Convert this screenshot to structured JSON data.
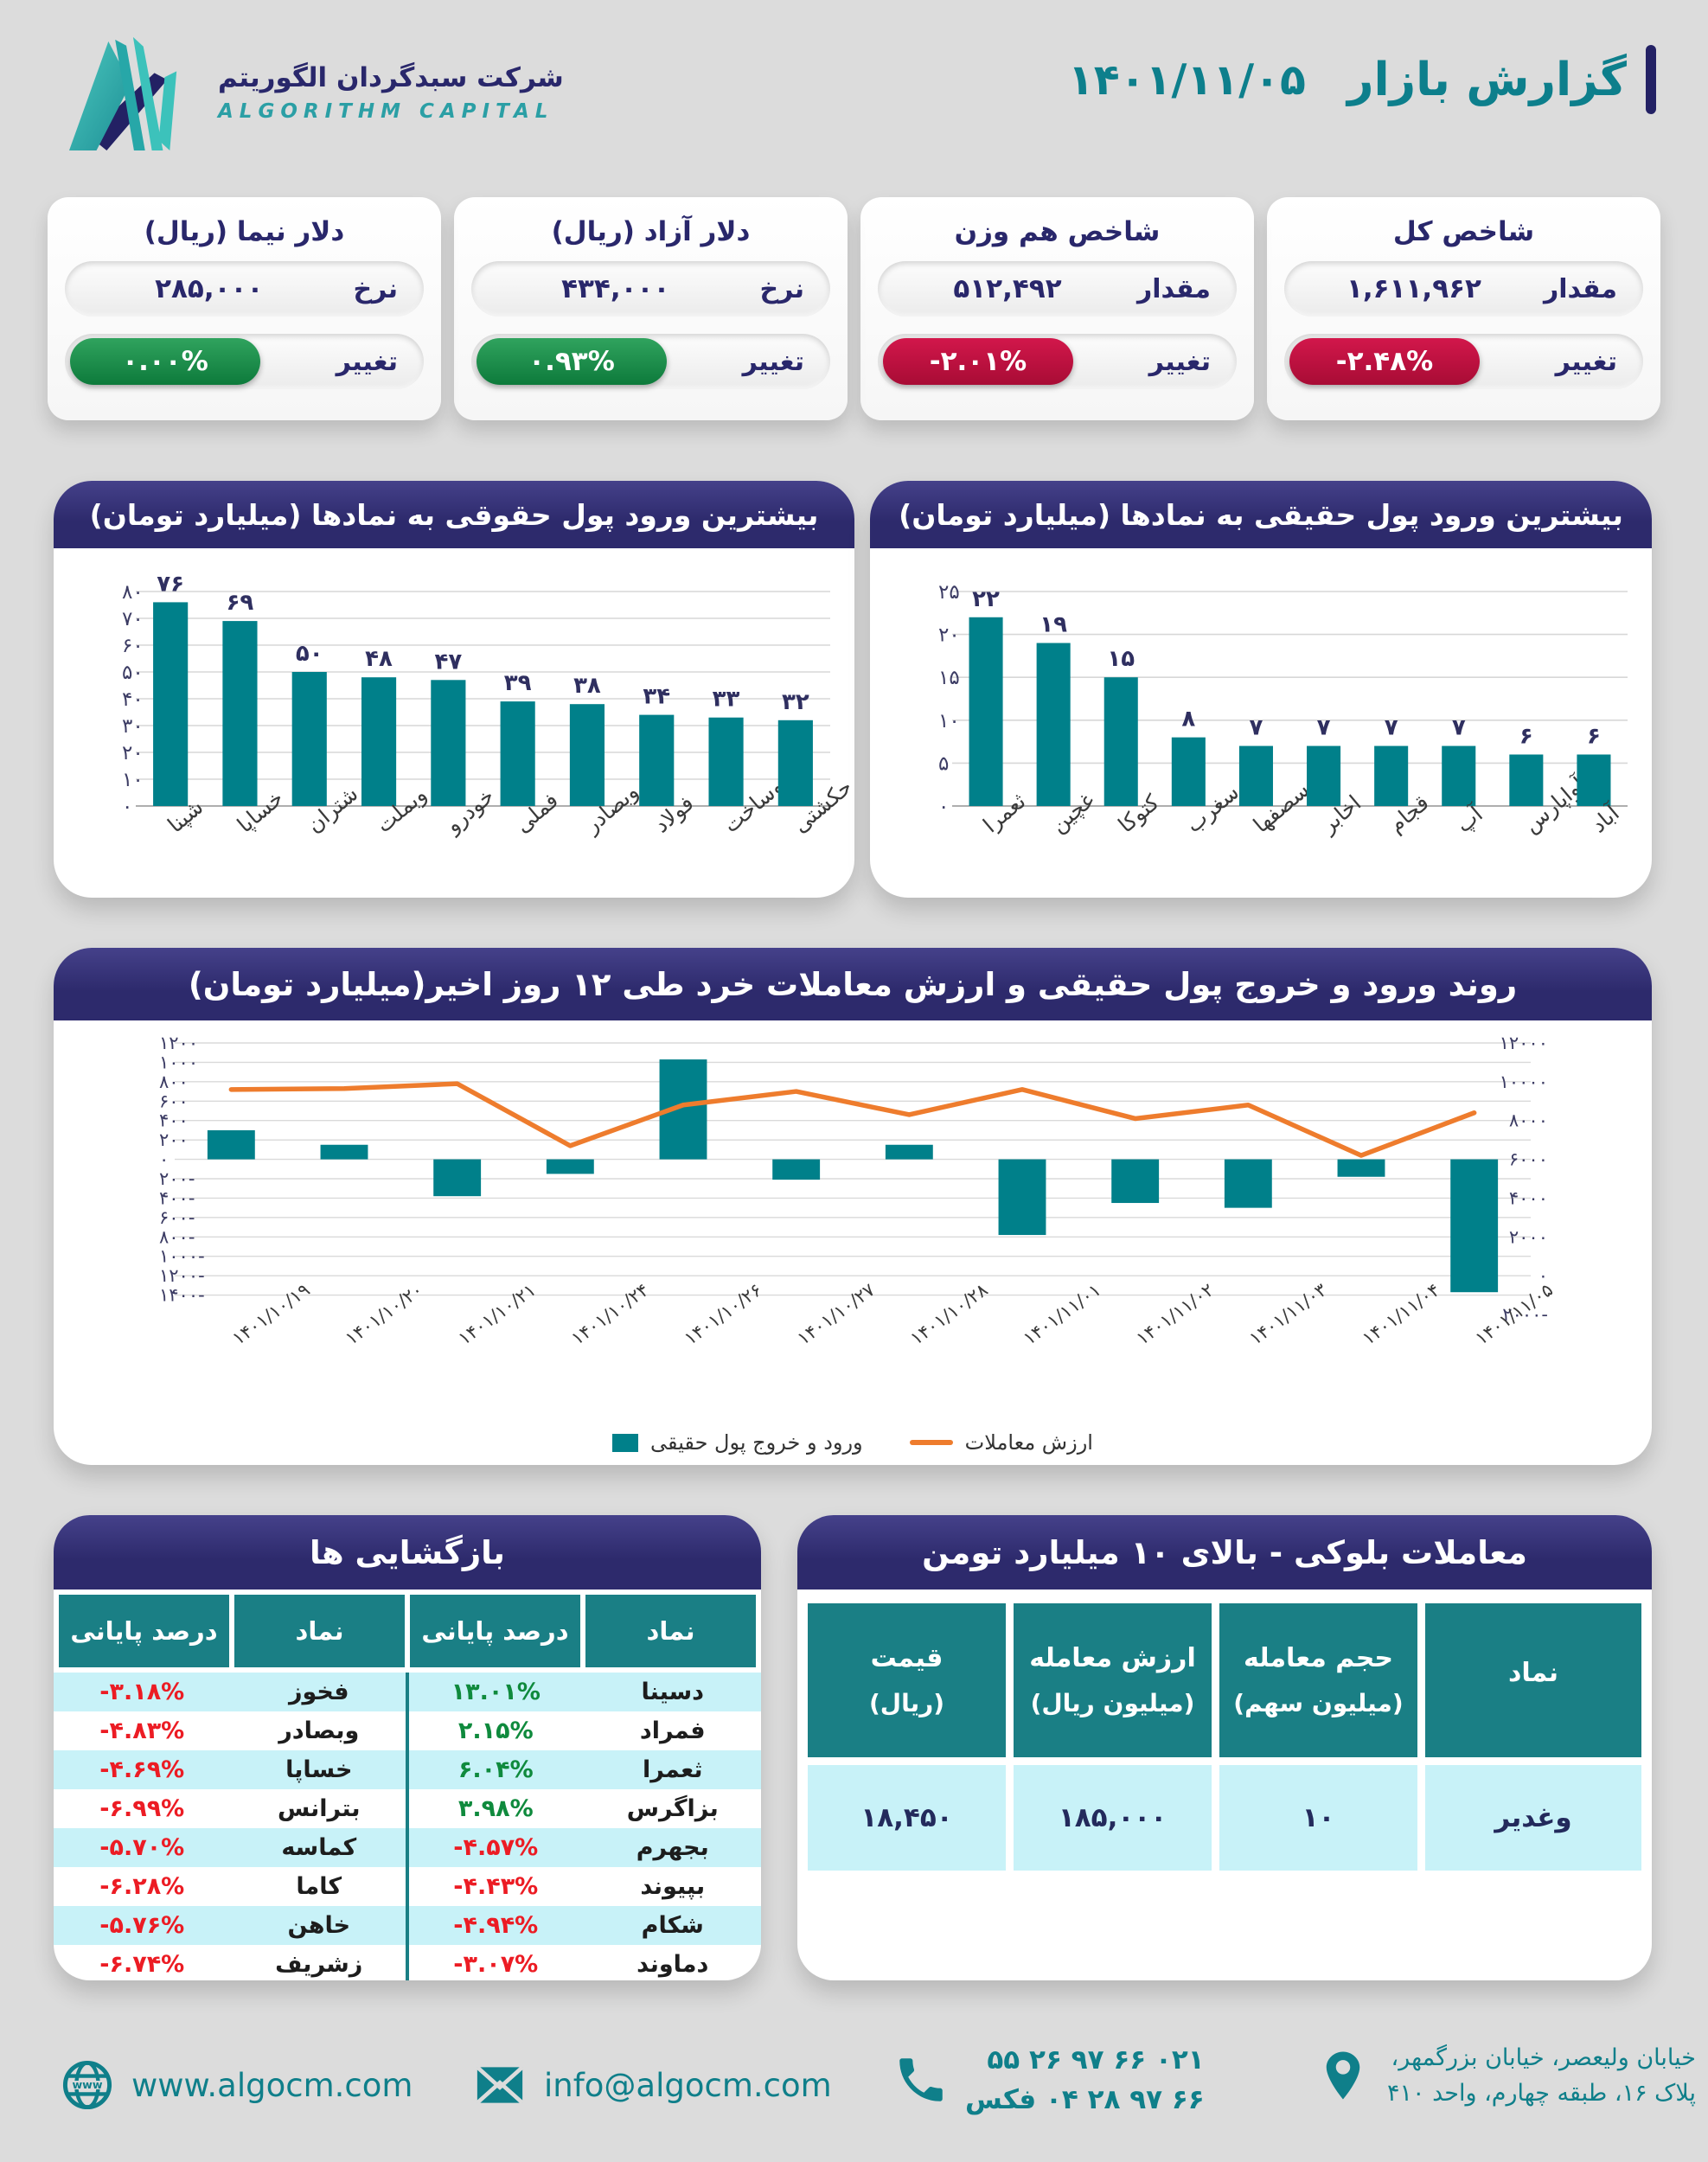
{
  "header": {
    "title": "گزارش بازار",
    "date": "۱۴۰۱/۱۱/۰۵",
    "logo_fa": "شرکت سبدگردان الگوریتم",
    "logo_en": "ALGORITHM CAPITAL"
  },
  "colors": {
    "background": "#dcdcdc",
    "navy": "#2d2a6c",
    "teal": "#00808a",
    "teal_header": "#1a7f85",
    "orange": "#ee7c2d",
    "red": "#c31244",
    "green": "#168c46",
    "row_cyan": "#c8f2f8",
    "title_teal": "#0d7f8c"
  },
  "stat_cards": [
    {
      "title": "شاخص کل",
      "row1_label": "مقدار",
      "row1_value": "۱,۶۱۱,۹۶۲",
      "row2_label": "تغییر",
      "change": "-۲.۴۸%",
      "change_type": "negative"
    },
    {
      "title": "شاخص هم وزن",
      "row1_label": "مقدار",
      "row1_value": "۵۱۲,۴۹۲",
      "row2_label": "تغییر",
      "change": "-۲.۰۱%",
      "change_type": "negative"
    },
    {
      "title": "دلار آزاد (ریال)",
      "row1_label": "نرخ",
      "row1_value": "۴۳۴,۰۰۰",
      "row2_label": "تغییر",
      "change": "۰.۹۳%",
      "change_type": "positive"
    },
    {
      "title": "دلار نیما (ریال)",
      "row1_label": "نرخ",
      "row1_value": "۲۸۵,۰۰۰",
      "row2_label": "تغییر",
      "change": "۰.۰۰%",
      "change_type": "positive"
    }
  ],
  "chart_data": [
    {
      "type": "bar",
      "title": "بیشترین ورود پول حقوقی به نمادها (میلیارد تومان)",
      "categories": [
        "شپنا",
        "خساپا",
        "شتران",
        "وبملت",
        "خودرو",
        "فملی",
        "وبصادر",
        "فولاد",
        "وساخت",
        "حکشتی"
      ],
      "values": [
        76,
        69,
        50,
        48,
        47,
        39,
        38,
        34,
        33,
        32
      ],
      "ylim": [
        0,
        80
      ],
      "ytick_step": 10,
      "bar_color": "#00808a",
      "grid": true,
      "legend_position": "none"
    },
    {
      "type": "bar",
      "title": "بیشترین ورود پول حقیقی به نمادها (میلیارد تومان)",
      "categories": [
        "ثعمرا",
        "غچین",
        "کتوکا",
        "سغرب",
        "سصفها",
        "اخابر",
        "قجام",
        "آپ",
        "آواپارس",
        "آباد"
      ],
      "values": [
        22,
        19,
        15,
        8,
        7,
        7,
        7,
        7,
        6,
        6
      ],
      "ylim": [
        0,
        25
      ],
      "ytick_step": 5,
      "bar_color": "#00808a",
      "grid": true,
      "legend_position": "none"
    },
    {
      "type": "combo",
      "title": "روند ورود و خروج پول حقیقی و ارزش معاملات خرد طی ۱۲ روز اخیر(میلیارد تومان)",
      "categories": [
        "۱۴۰۱/۱۰/۱۹",
        "۱۴۰۱/۱۰/۲۰",
        "۱۴۰۱/۱۰/۲۱",
        "۱۴۰۱/۱۰/۲۴",
        "۱۴۰۱/۱۰/۲۶",
        "۱۴۰۱/۱۰/۲۷",
        "۱۴۰۱/۱۰/۲۸",
        "۱۴۰۱/۱۱/۰۱",
        "۱۴۰۱/۱۱/۰۲",
        "۱۴۰۱/۱۱/۰۳",
        "۱۴۰۱/۱۱/۰۴",
        "۱۴۰۱/۱۱/۰۵"
      ],
      "series": [
        {
          "name": "ورود و خروج پول حقیقی",
          "type": "bar",
          "axis": "left",
          "color": "#00808a",
          "values": [
            300,
            150,
            -380,
            -150,
            1030,
            -210,
            150,
            -780,
            -450,
            -500,
            -180,
            -1370
          ]
        },
        {
          "name": "ارزش معاملات",
          "type": "line",
          "axis": "right",
          "color": "#ee7c2d",
          "values": [
            9600,
            9650,
            9900,
            6700,
            8800,
            9500,
            8300,
            9600,
            8100,
            8800,
            6200,
            8400
          ]
        }
      ],
      "left_ylim": [
        -1400,
        1200
      ],
      "left_tick_step": 200,
      "right_ylim": [
        -2000,
        12000
      ],
      "right_tick_step": 2000,
      "grid": true,
      "legend_position": "bottom"
    }
  ],
  "tables": {
    "reopenings": {
      "title": "بازگشایی ها",
      "col_headers": [
        "نماد",
        "درصد پایانی",
        "نماد",
        "درصد پایانی"
      ],
      "rows": [
        {
          "sym_r": "دسینا",
          "pct_r": "۱۳.۰۱%",
          "trend_r": "pos",
          "sym_l": "فخوز",
          "pct_l": "-۳.۱۸%",
          "trend_l": "neg"
        },
        {
          "sym_r": "فمراد",
          "pct_r": "۲.۱۵%",
          "trend_r": "pos",
          "sym_l": "وبصادر",
          "pct_l": "-۴.۸۳%",
          "trend_l": "neg"
        },
        {
          "sym_r": "ثعمرا",
          "pct_r": "۶.۰۴%",
          "trend_r": "pos",
          "sym_l": "خساپا",
          "pct_l": "-۴.۶۹%",
          "trend_l": "neg"
        },
        {
          "sym_r": "بزاگرس",
          "pct_r": "۳.۹۸%",
          "trend_r": "pos",
          "sym_l": "بترانس",
          "pct_l": "-۶.۹۹%",
          "trend_l": "neg"
        },
        {
          "sym_r": "بجهرم",
          "pct_r": "-۴.۵۷%",
          "trend_r": "neg",
          "sym_l": "کماسه",
          "pct_l": "-۵.۷۰%",
          "trend_l": "neg"
        },
        {
          "sym_r": "بپیوند",
          "pct_r": "-۴.۴۳%",
          "trend_r": "neg",
          "sym_l": "کاما",
          "pct_l": "-۶.۲۸%",
          "trend_l": "neg"
        },
        {
          "sym_r": "شکام",
          "pct_r": "-۴.۹۴%",
          "trend_r": "neg",
          "sym_l": "خاهن",
          "pct_l": "-۵.۷۶%",
          "trend_l": "neg"
        },
        {
          "sym_r": "دماوند",
          "pct_r": "-۳.۰۷%",
          "trend_r": "neg",
          "sym_l": "زشریف",
          "pct_l": "-۶.۷۴%",
          "trend_l": "neg"
        }
      ]
    },
    "block_trades": {
      "title": "معاملات بلوکی - بالای ۱۰ میلیارد تومن",
      "headers": [
        {
          "l1": "نماد",
          "l2": ""
        },
        {
          "l1": "حجم معامله",
          "l2": "(میلیون سهم)"
        },
        {
          "l1": "ارزش معامله",
          "l2": "(میلیون ریال)"
        },
        {
          "l1": "قیمت",
          "l2": "(ریال)"
        }
      ],
      "rows": [
        {
          "symbol": "وغدیر",
          "volume": "۱۰",
          "value": "۱۸۵,۰۰۰",
          "price": "۱۸,۴۵۰"
        }
      ]
    }
  },
  "footer": {
    "website": "www.algocm.com",
    "email": "info@algocm.com",
    "phone1": "۰۲۱ ۶۶ ۹۷ ۲۶ ۵۵",
    "phone2": "۶۶ ۹۷ ۲۸ ۰۴ فکس",
    "address1": "خیابان ولیعصر، خیابان بزرگمهر،",
    "address2": "پلاک ۱۶، طبقه چهارم، واحد ۴۱۰"
  }
}
